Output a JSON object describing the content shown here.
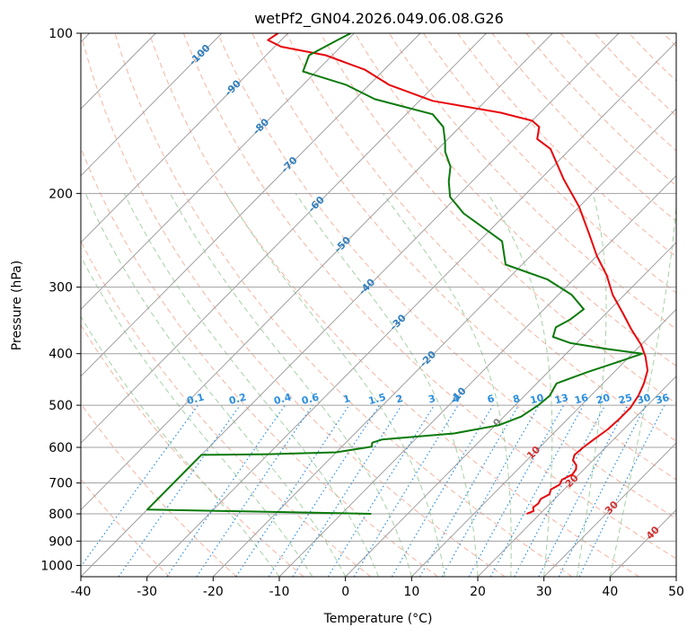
{
  "chart_data": {
    "type": "line",
    "title": "wetPf2_GN04.2026.049.06.08.G26",
    "xlabel": "Temperature (°C)",
    "ylabel": "Pressure (hPa)",
    "xlim": [
      -40,
      50
    ],
    "ylim": [
      1050,
      100
    ],
    "y_scale": "log",
    "skew": true,
    "grid": true,
    "x_ticks": [
      -40,
      -30,
      -20,
      -10,
      0,
      10,
      20,
      30,
      40,
      50
    ],
    "y_ticks": [
      100,
      200,
      300,
      400,
      500,
      600,
      700,
      800,
      900,
      1000
    ],
    "colors": {
      "temperature": "#e8060a",
      "dewpoint": "#0a7a0a",
      "isotherm": "#a0a0a0",
      "dry_adiabat": "#f5a08a",
      "moist_adiabat": "#9ccc9c",
      "mixing_ratio": "#2b8fe0",
      "wetbulb_label": "#2f7fbf",
      "isotherm_label": "#d43030",
      "zero_label": "#808080"
    },
    "series": [
      {
        "name": "temperature",
        "points": [
          [
            18.0,
            800
          ],
          [
            18.6,
            790
          ],
          [
            18.0,
            778
          ],
          [
            18.2,
            765
          ],
          [
            17.9,
            750
          ],
          [
            18.5,
            735
          ],
          [
            18.0,
            720
          ],
          [
            18.6,
            705
          ],
          [
            18.2,
            690
          ],
          [
            19.0,
            675
          ],
          [
            18.8,
            660
          ],
          [
            18.2,
            648
          ],
          [
            17.0,
            635
          ],
          [
            16.4,
            620
          ],
          [
            16.6,
            600
          ],
          [
            17.0,
            580
          ],
          [
            17.6,
            555
          ],
          [
            17.8,
            530
          ],
          [
            17.8,
            505
          ],
          [
            17.2,
            480
          ],
          [
            16.2,
            455
          ],
          [
            14.8,
            430
          ],
          [
            12.4,
            405
          ],
          [
            10.0,
            385
          ],
          [
            6.2,
            360
          ],
          [
            2.4,
            335
          ],
          [
            -1.8,
            310
          ],
          [
            -5.6,
            285
          ],
          [
            -10.0,
            262
          ],
          [
            -14.5,
            238
          ],
          [
            -20.0,
            212
          ],
          [
            -26.5,
            188
          ],
          [
            -33.0,
            165
          ],
          [
            -36.5,
            158
          ],
          [
            -38.0,
            150
          ],
          [
            -40.0,
            146
          ],
          [
            -46.0,
            141
          ],
          [
            -58.0,
            134
          ],
          [
            -67.0,
            125
          ],
          [
            -73.0,
            117
          ],
          [
            -81.0,
            110
          ],
          [
            -89.0,
            106
          ],
          [
            -92.0,
            103
          ],
          [
            -91.5,
            100
          ]
        ]
      },
      {
        "name": "dewpoint",
        "points": [
          [
            -5.5,
            800
          ],
          [
            -40.0,
            785
          ],
          [
            -40.0,
            620
          ],
          [
            -30.0,
            618
          ],
          [
            -20.0,
            613
          ],
          [
            -15.5,
            598
          ],
          [
            -16.0,
            588
          ],
          [
            -15.0,
            580
          ],
          [
            -5.0,
            565
          ],
          [
            0.5,
            545
          ],
          [
            2.6,
            525
          ],
          [
            3.5,
            500
          ],
          [
            3.8,
            480
          ],
          [
            3.0,
            455
          ],
          [
            6.0,
            433
          ],
          [
            9.0,
            415
          ],
          [
            11.5,
            400
          ],
          [
            5.5,
            392
          ],
          [
            -1.0,
            382
          ],
          [
            -4.5,
            372
          ],
          [
            -5.5,
            357
          ],
          [
            -4.5,
            345
          ],
          [
            -4.0,
            330
          ],
          [
            -8.0,
            310
          ],
          [
            -14.0,
            290
          ],
          [
            -22.5,
            272
          ],
          [
            -26.5,
            246
          ],
          [
            -31.0,
            233
          ],
          [
            -36.5,
            218
          ],
          [
            -41.0,
            203
          ],
          [
            -43.5,
            190
          ],
          [
            -45.5,
            178
          ],
          [
            -48.5,
            167
          ],
          [
            -50.0,
            160
          ],
          [
            -52.5,
            150
          ],
          [
            -56.0,
            142
          ],
          [
            -67.0,
            133
          ],
          [
            -73.5,
            125
          ],
          [
            -82.0,
            118
          ],
          [
            -83.5,
            110
          ],
          [
            -81.5,
            103
          ],
          [
            -80.5,
            100
          ]
        ]
      }
    ],
    "annotations": {
      "wet_bulb_labels": [
        "-100",
        "-90",
        "-80",
        "-70",
        "-60",
        "-50",
        "-40",
        "-30",
        "-20",
        "-10"
      ],
      "mixing_ratio_labels": [
        "0.1",
        "0.2",
        "0.4",
        "0.6",
        "1",
        "1.5",
        "2",
        "3",
        "4",
        "6",
        "8",
        "10",
        "13",
        "16",
        "20",
        "25",
        "30",
        "36"
      ],
      "isotherm_labels": [
        "0",
        "10",
        "20",
        "30",
        "40"
      ]
    }
  }
}
